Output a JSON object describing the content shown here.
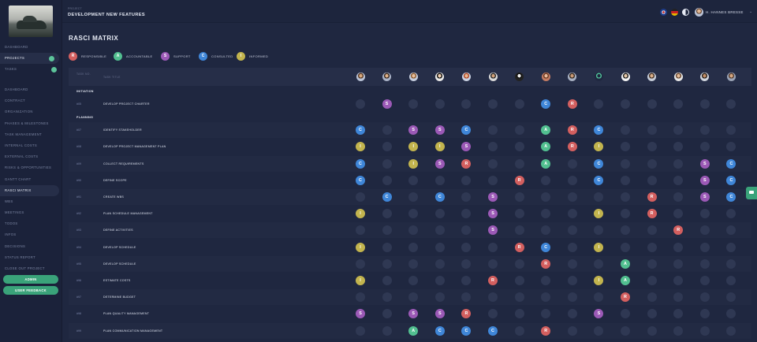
{
  "colors": {
    "R": "#d35f5f",
    "A": "#52bf90",
    "S": "#9b59b6",
    "C": "#3f86d8",
    "I": "#c2b44e",
    "empty": "#2f3853"
  },
  "header": {
    "small_label": "PROJECT",
    "title": "DEVELOPMENT NEW FEATURES",
    "user_name": "H. HANNES BRESSE",
    "flags": [
      "uk-flag-icon",
      "de-flag-icon"
    ]
  },
  "sidebar": {
    "project_items": [
      {
        "label": "DASHBOARD",
        "active": false,
        "dot": false
      },
      {
        "label": "PROJECTS",
        "active": true,
        "dot": true
      },
      {
        "label": "TASKS",
        "active": false,
        "dot": true
      }
    ],
    "menu_items": [
      {
        "label": "DASHBOARD",
        "active": false
      },
      {
        "label": "CONTRACT",
        "active": false
      },
      {
        "label": "ORGANIZATION",
        "active": false
      },
      {
        "label": "PHASES & MILESTONES",
        "active": false
      },
      {
        "label": "TASK MANAGEMENT",
        "active": false
      },
      {
        "label": "INTERNAL COSTS",
        "active": false
      },
      {
        "label": "EXTERNAL COSTS",
        "active": false
      },
      {
        "label": "RISKS & OPPORTUNITIES",
        "active": false
      },
      {
        "label": "GANTT CHART",
        "active": false
      },
      {
        "label": "RASCI MATRIX",
        "active": true
      },
      {
        "label": "WBS",
        "active": false
      },
      {
        "label": "MEETINGS",
        "active": false
      },
      {
        "label": "TODOS",
        "active": false
      },
      {
        "label": "INFOS",
        "active": false
      },
      {
        "label": "DECISIONS",
        "active": false
      },
      {
        "label": "STATUS REPORT",
        "active": false
      },
      {
        "label": "CLOSE OUT PROJECT",
        "active": false
      }
    ],
    "admin_label": "ADMIN",
    "feedback_label": "USER FEEDBACK"
  },
  "page": {
    "title": "RASCI MATRIX"
  },
  "legend": [
    {
      "key": "R",
      "label": "RESPONSIBLE"
    },
    {
      "key": "A",
      "label": "ACCOUNTABLE"
    },
    {
      "key": "S",
      "label": "SUPPORT"
    },
    {
      "key": "C",
      "label": "CONSULTED"
    },
    {
      "key": "I",
      "label": "INFORMED"
    }
  ],
  "table": {
    "col_no": "TASK NO.",
    "col_title": "TASK TITLE",
    "people": [
      {
        "skin": "#d8a97e",
        "hair": "#5a3b25",
        "bg": "#b9c2d6"
      },
      {
        "skin": "#e0b28a",
        "hair": "#3a2a20",
        "bg": "#aab3c8"
      },
      {
        "skin": "#e9c09c",
        "hair": "#8a5a30",
        "bg": "#c4ccdd"
      },
      {
        "skin": "#f1cfb0",
        "hair": "#111111",
        "bg": "#e8e8e8"
      },
      {
        "skin": "#e7b690",
        "hair": "#b04a2a",
        "bg": "#c9d1e2"
      },
      {
        "skin": "#d3a27a",
        "hair": "#2a2a2a",
        "bg": "#d9d9d9"
      },
      {
        "skin": "#f0f0f0",
        "hair": "#111111",
        "bg": "#222222"
      },
      {
        "skin": "#e8b899",
        "hair": "#6a3a22",
        "bg": "#c27b63"
      },
      {
        "skin": "#c99a76",
        "hair": "#3b2d22",
        "bg": "#a7b0c2"
      },
      {
        "skin": "#1f2740",
        "hair": "#4fbf96",
        "bg": "#1f2740"
      },
      {
        "skin": "#e6c8a8",
        "hair": "#222222",
        "bg": "#f4f4f4"
      },
      {
        "skin": "#dab08a",
        "hair": "#4a3526",
        "bg": "#c6ccd8"
      },
      {
        "skin": "#e4bc98",
        "hair": "#6b4a32",
        "bg": "#e6e6e6"
      },
      {
        "skin": "#c48f68",
        "hair": "#2d231c",
        "bg": "#d0d5de"
      },
      {
        "skin": "#d6a882",
        "hair": "#5a4030",
        "bg": "#9aa3b6"
      }
    ],
    "sections": [
      {
        "phase": "INITIATION",
        "rows": [
          {
            "no": "#05",
            "title": "DEVELOP PROJECT CHARTER",
            "cells": [
              "",
              "S",
              "",
              "",
              "",
              "",
              "",
              "C",
              "R",
              "",
              "",
              "",
              "",
              "",
              ""
            ]
          }
        ]
      },
      {
        "phase": "PLANNING",
        "rows": [
          {
            "no": "#07",
            "title": "IDENTIFY STAKEHOLDER",
            "cells": [
              "C",
              "",
              "S",
              "S",
              "C",
              "",
              "",
              "A",
              "R",
              "C",
              "",
              "",
              "",
              "",
              ""
            ]
          },
          {
            "no": "#08",
            "title": "DEVELOP PROJECT MANAGEMENT PLAN",
            "cells": [
              "I",
              "",
              "I",
              "I",
              "S",
              "",
              "",
              "A",
              "R",
              "I",
              "",
              "",
              "",
              "",
              ""
            ]
          },
          {
            "no": "#09",
            "title": "COLLECT REQUIREMENTS",
            "cells": [
              "C",
              "",
              "I",
              "S",
              "R",
              "",
              "",
              "A",
              "",
              "C",
              "",
              "",
              "",
              "S",
              "C"
            ]
          },
          {
            "no": "#90",
            "title": "DEFINE SCOPE",
            "cells": [
              "C",
              "",
              "",
              "",
              "",
              "",
              "R",
              "",
              "",
              "C",
              "",
              "",
              "",
              "S",
              "C"
            ]
          },
          {
            "no": "#91",
            "title": "CREATE WBS",
            "cells": [
              "",
              "C",
              "",
              "C",
              "",
              "S",
              "",
              "",
              "",
              "",
              "",
              "R",
              "",
              "S",
              "C"
            ]
          },
          {
            "no": "#92",
            "title": "PLAN SCHEDULE MANAGEMENT",
            "cells": [
              "I",
              "",
              "",
              "",
              "",
              "S",
              "",
              "",
              "",
              "I",
              "",
              "R",
              "",
              "",
              ""
            ]
          },
          {
            "no": "#93",
            "title": "DEFINE ACTIVITIES",
            "cells": [
              "",
              "",
              "",
              "",
              "",
              "S",
              "",
              "",
              "",
              "",
              "",
              "",
              "R",
              "",
              ""
            ]
          },
          {
            "no": "#94",
            "title": "DEVELOP SCHEDULE",
            "cells": [
              "I",
              "",
              "",
              "",
              "",
              "",
              "R",
              "C",
              "",
              "I",
              "",
              "",
              "",
              "",
              ""
            ]
          },
          {
            "no": "#95",
            "title": "DEVELOP SCHEDULE",
            "cells": [
              "",
              "",
              "",
              "",
              "",
              "",
              "",
              "R",
              "",
              "",
              "A",
              "",
              "",
              "",
              ""
            ]
          },
          {
            "no": "#96",
            "title": "ESTIMATE COSTS",
            "cells": [
              "I",
              "",
              "",
              "",
              "",
              "R",
              "",
              "",
              "",
              "I",
              "A",
              "",
              "",
              "",
              ""
            ]
          },
          {
            "no": "#97",
            "title": "DETERMINE BUDGET",
            "cells": [
              "",
              "",
              "",
              "",
              "",
              "",
              "",
              "",
              "",
              "",
              "R",
              "",
              "",
              "",
              ""
            ]
          },
          {
            "no": "#98",
            "title": "PLAN QUALITY MANAGEMENT",
            "cells": [
              "S",
              "",
              "S",
              "S",
              "R",
              "",
              "",
              "",
              "",
              "S",
              "",
              "",
              "",
              "",
              ""
            ]
          },
          {
            "no": "#99",
            "title": "PLAN COMMUNICATION MANAGEMENT",
            "cells": [
              "",
              "",
              "A",
              "C",
              "C",
              "C",
              "",
              "R",
              "",
              "",
              "",
              "",
              "",
              "",
              ""
            ]
          }
        ]
      }
    ]
  }
}
